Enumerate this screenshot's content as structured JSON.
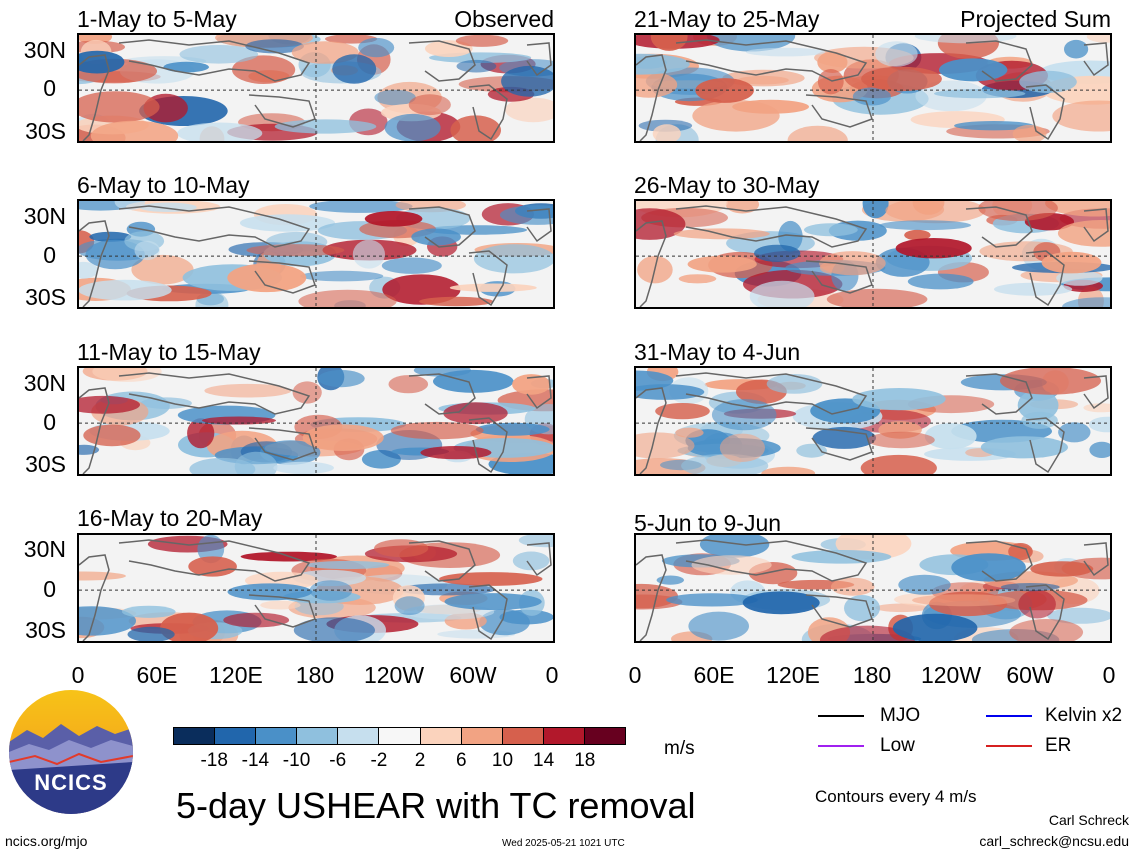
{
  "left_label": "Observed",
  "right_label": "Projected Sum",
  "panels_left": [
    {
      "title": "1-May to 5-May"
    },
    {
      "title": "6-May to 10-May"
    },
    {
      "title": "11-May to 15-May"
    },
    {
      "title": "16-May to 20-May"
    }
  ],
  "panels_right": [
    {
      "title": "21-May to 25-May"
    },
    {
      "title": "26-May to 30-May"
    },
    {
      "title": "31-May to 4-Jun"
    },
    {
      "title": "5-Jun to 9-Jun"
    }
  ],
  "lat_labels": [
    "30N",
    "0",
    "30S"
  ],
  "lon_labels": [
    "0",
    "60E",
    "120E",
    "180",
    "120W",
    "60W",
    "0"
  ],
  "colorbar": {
    "ticks": [
      "-18",
      "-14",
      "-10",
      "-6",
      "-2",
      "2",
      "6",
      "10",
      "14",
      "18"
    ],
    "colors": [
      "#0a2d5c",
      "#2166ac",
      "#4a90c8",
      "#8fc0de",
      "#c6dfee",
      "#f7f7f7",
      "#fbd3bd",
      "#f2a383",
      "#d6604d",
      "#b2182b",
      "#67001f"
    ],
    "units": "m/s"
  },
  "legend": [
    {
      "label": "MJO",
      "color": "#000000"
    },
    {
      "label": "Kelvin x2",
      "color": "#0000ee"
    },
    {
      "label": "Low",
      "color": "#a020f0"
    },
    {
      "label": "ER",
      "color": "#d62020"
    }
  ],
  "contour_note": "Contours every 4 m/s",
  "main_title": "5-day USHEAR with TC removal",
  "logo_text": "NCICS",
  "footer": {
    "left": "ncics.org/mjo",
    "timestamp": "Wed 2025-05-21 1021 UTC",
    "author": "Carl Schreck",
    "email": "carl_schreck@ncsu.edu"
  }
}
